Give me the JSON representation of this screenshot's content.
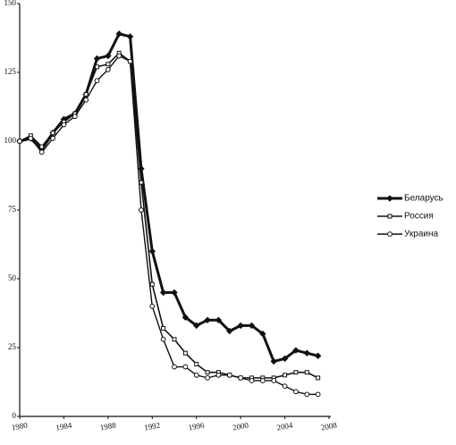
{
  "chart_data": {
    "type": "line",
    "x": [
      1980,
      1981,
      1982,
      1983,
      1984,
      1985,
      1986,
      1987,
      1988,
      1989,
      1990,
      1991,
      1992,
      1993,
      1994,
      1995,
      1996,
      1997,
      1998,
      1999,
      2000,
      2001,
      2002,
      2003,
      2004,
      2005,
      2006,
      2007
    ],
    "series": [
      {
        "name": "Беларусь",
        "color": "#111111",
        "marker": "diamond",
        "values": [
          100,
          101,
          97,
          103,
          108,
          110,
          117,
          130,
          131,
          139,
          138,
          90,
          60,
          45,
          45,
          36,
          33,
          35,
          35,
          31,
          33,
          33,
          30,
          20,
          21,
          24,
          23,
          22
        ]
      },
      {
        "name": "Россия",
        "color": "#111111",
        "marker": "square",
        "values": [
          100,
          102,
          98,
          103,
          107,
          110,
          117,
          127,
          128,
          132,
          129,
          85,
          48,
          32,
          28,
          23,
          19,
          16,
          16,
          15,
          14,
          14,
          14,
          14,
          15,
          16,
          16,
          14
        ]
      },
      {
        "name": "Украина",
        "color": "#111111",
        "marker": "circle",
        "values": [
          100,
          101,
          96,
          101,
          106,
          109,
          115,
          122,
          126,
          131,
          129,
          75,
          40,
          28,
          18,
          18,
          15,
          14,
          15,
          15,
          14,
          13,
          13,
          13,
          11,
          9,
          8,
          8
        ]
      }
    ],
    "xlim": [
      1980,
      2008
    ],
    "xticks": [
      1980,
      1984,
      1988,
      1992,
      1996,
      2000,
      2004,
      2008
    ],
    "ylim": [
      0,
      150
    ],
    "yticks": [
      0,
      25,
      50,
      75,
      100,
      125,
      150
    ],
    "legend": "right"
  }
}
